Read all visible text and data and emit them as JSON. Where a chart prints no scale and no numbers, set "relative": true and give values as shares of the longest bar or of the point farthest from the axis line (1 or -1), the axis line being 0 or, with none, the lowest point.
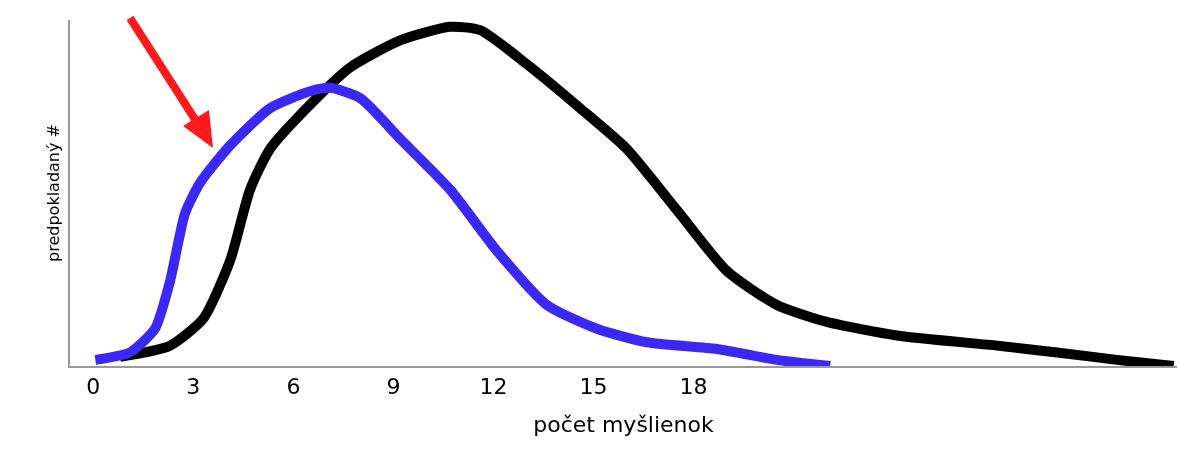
{
  "chart_data": {
    "type": "line",
    "relative": true,
    "xlabel": "počet myšlienok",
    "ylabel": "predpokladaný #",
    "xlim": [
      -0.7,
      32.5
    ],
    "xticks": [
      0,
      3,
      6,
      9,
      12,
      15,
      18
    ],
    "line_style": "solid",
    "series": [
      {
        "color": "#000000",
        "x": [
          0.8,
          2.3,
          3.3,
          4.1,
          4.7,
          5.3,
          6.5,
          7.7,
          9.2,
          10.7,
          11.6,
          13.0,
          14.6,
          16.0,
          17.5,
          19.0,
          20.5,
          22.0,
          24.1,
          27.1,
          28.9,
          30.7,
          32.4
        ],
        "values": [
          0.027,
          0.06,
          0.14,
          0.31,
          0.52,
          0.64,
          0.77,
          0.88,
          0.96,
          1.0,
          0.99,
          0.89,
          0.76,
          0.64,
          0.46,
          0.28,
          0.18,
          0.13,
          0.09,
          0.06,
          0.04,
          0.018,
          0
        ]
      },
      {
        "color": "#3b28f5",
        "x": [
          0.06,
          1.1,
          1.85,
          2.3,
          2.75,
          3.2,
          4.1,
          5.3,
          6.5,
          7.1,
          8.0,
          9.2,
          10.7,
          12.1,
          13.6,
          15.1,
          16.6,
          18.7,
          20.5,
          22.1
        ],
        "values": [
          0.018,
          0.04,
          0.11,
          0.25,
          0.45,
          0.54,
          0.65,
          0.76,
          0.81,
          0.82,
          0.79,
          0.67,
          0.52,
          0.34,
          0.18,
          0.11,
          0.07,
          0.05,
          0.018,
          0
        ]
      }
    ]
  }
}
